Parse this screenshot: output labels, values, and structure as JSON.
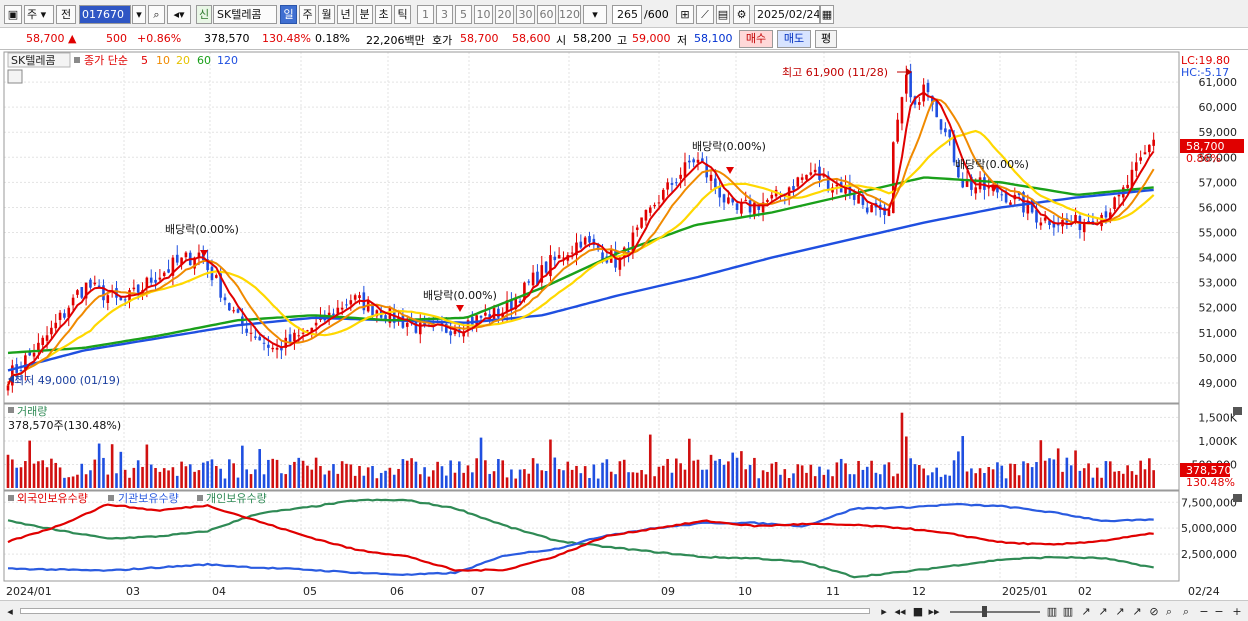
{
  "toolbar": {
    "period_tabs": [
      "주",
      "전"
    ],
    "code": "017670",
    "badge": "신",
    "stock_name": "SK텔레콤",
    "interval_buttons": [
      "일",
      "주",
      "월",
      "년",
      "분",
      "초",
      "틱"
    ],
    "selected_interval": "일",
    "minute_values": [
      "1",
      "3",
      "5",
      "10",
      "20",
      "30",
      "60",
      "120"
    ],
    "count": "265",
    "count_total": "/600",
    "date": "2025/02/24"
  },
  "quote": {
    "price": "58,700",
    "change_arrow": "▲",
    "change": "500",
    "change_pct": "+0.86%",
    "volume": "378,570",
    "volume_ratio": "130.48%",
    "turnover": "0.18%",
    "amount": "22,206백만",
    "ask_label": "호가",
    "ask1": "58,700",
    "ask2": "58,600",
    "open_label": "시",
    "open": "58,200",
    "high_label": "고",
    "high": "59,000",
    "low_label": "저",
    "low": "58,100",
    "buy_label": "매수",
    "sell_label": "매도",
    "avg_label": "평"
  },
  "price_panel": {
    "legend_name": "SK텔레콤",
    "legend_ma_prefix": "종가 단순",
    "ma_periods": [
      "5",
      "10",
      "20",
      "60",
      "120"
    ],
    "ma_colors": [
      "#e00000",
      "#f08a00",
      "#ffd800",
      "#1aa01a",
      "#1f4fe0"
    ],
    "lc": "LC:19.80",
    "hc": "HC:-5.17",
    "last_price_tag": "58,700",
    "last_pct_tag": "0.86%",
    "annotation_high": "최고 61,900 (11/28)",
    "annotation_low": "최저 49,000 (01/19)",
    "dividend_label": "배당락(0.00%)"
  },
  "volume_panel": {
    "title": "거래량",
    "value": "378,570주(130.48%)",
    "last_tag": "378,570",
    "last_pct_tag": "130.48%",
    "y_ticks": [
      "1,500K",
      "1,000K",
      "500,000"
    ]
  },
  "holding_panel": {
    "series_labels": [
      "외국인보유수량",
      "기관보유수량",
      "개인보유수량"
    ],
    "series_colors": [
      "#e00000",
      "#2a5be0",
      "#2f8a55"
    ],
    "y_ticks": [
      "7,500,000",
      "5,000,000",
      "2,500,000"
    ]
  },
  "x_axis": {
    "labels": [
      "2024/01",
      "03",
      "04",
      "05",
      "06",
      "07",
      "08",
      "09",
      "10",
      "11",
      "12",
      "2025/01",
      "02",
      "02/24"
    ]
  },
  "chart_data": {
    "type": "candlestick",
    "y_ticks": [
      49000,
      50000,
      51000,
      52000,
      53000,
      54000,
      55000,
      56000,
      57000,
      58000,
      59000,
      60000,
      61000
    ],
    "ylim": [
      48200,
      62200
    ],
    "date_range": [
      "2024/01",
      "2025/02/24"
    ],
    "high": {
      "value": 61900,
      "date": "11/28"
    },
    "low": {
      "value": 49000,
      "date": "01/19"
    },
    "last": {
      "close": 58700,
      "open": 58200,
      "high": 59000,
      "low": 58100,
      "volume": 378570
    },
    "close_path_approx": [
      49200,
      50800,
      52900,
      52200,
      53400,
      54200,
      51500,
      50300,
      51200,
      52400,
      51700,
      51000,
      51400,
      51900,
      53500,
      54700,
      53800,
      56300,
      58000,
      55800,
      56300,
      57400,
      56700,
      55400,
      61300,
      57000,
      56600,
      55600,
      55300,
      56100,
      58700
    ],
    "ma120_path_approx": [
      49500,
      50300,
      50800,
      51300,
      51600,
      51500,
      51400,
      51700,
      52500,
      53200,
      54000,
      54700,
      55400,
      56000,
      56400,
      56700
    ],
    "ma60_path_approx": [
      50200,
      50400,
      50900,
      51500,
      51700,
      51500,
      51600,
      52800,
      54200,
      55300,
      55800,
      56500,
      57200,
      57000,
      56500,
      56800
    ]
  }
}
